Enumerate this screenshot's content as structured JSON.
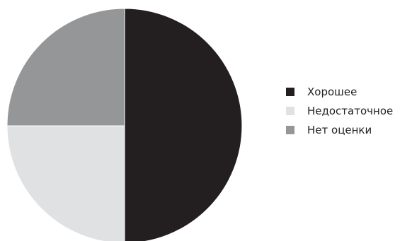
{
  "chart_data": {
    "type": "pie",
    "title": "",
    "categories": [
      "Хорошее",
      "Недостаточное",
      "Нет оценки"
    ],
    "values": [
      50,
      25,
      25
    ],
    "colors": [
      "#231f20",
      "#e0e1e3",
      "#959698"
    ],
    "legend_position": "right",
    "start_angle": "top",
    "direction": "clockwise"
  }
}
